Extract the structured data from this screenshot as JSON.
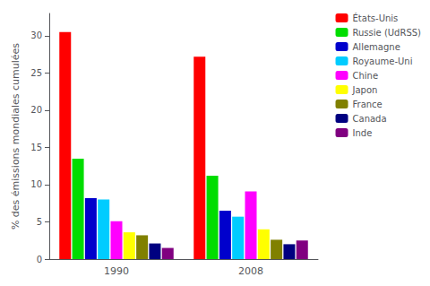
{
  "chart_data": {
    "type": "bar",
    "categories": [
      "1990",
      "2008"
    ],
    "ylabel": "% des émissions mondiales cumulées",
    "series": [
      {
        "name": "États-Unis",
        "color": "#ff0000",
        "values": [
          30.5,
          27.2
        ]
      },
      {
        "name": "Russie (UdRSS)",
        "color": "#00dd00",
        "values": [
          13.5,
          11.2
        ]
      },
      {
        "name": "Allemagne",
        "color": "#0000cc",
        "values": [
          8.2,
          6.5
        ]
      },
      {
        "name": "Royaume-Uni",
        "color": "#00ccff",
        "values": [
          8.0,
          5.7
        ]
      },
      {
        "name": "Chine",
        "color": "#ff00ff",
        "values": [
          5.1,
          9.1
        ]
      },
      {
        "name": "Japon",
        "color": "#ffff00",
        "values": [
          3.6,
          4.0
        ]
      },
      {
        "name": "France",
        "color": "#808000",
        "values": [
          3.2,
          2.6
        ]
      },
      {
        "name": "Canada",
        "color": "#000080",
        "values": [
          2.1,
          2.0
        ]
      },
      {
        "name": "Inde",
        "color": "#800080",
        "values": [
          1.5,
          2.5
        ]
      }
    ],
    "ylim": [
      0,
      33
    ],
    "yticks": [
      0,
      5,
      10,
      15,
      20,
      25,
      30
    ],
    "grid": false,
    "legend": "upper right"
  }
}
